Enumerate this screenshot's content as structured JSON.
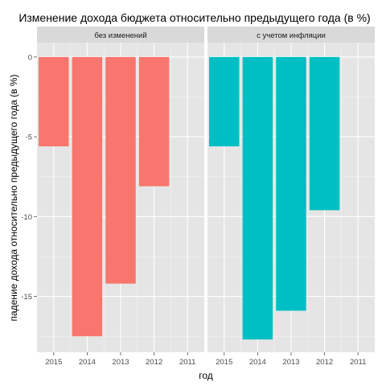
{
  "chart_data": {
    "type": "bar",
    "title": "Изменение дохода бюджета относительно предыдущего года (в %)",
    "xlabel": "год",
    "ylabel": "падение дохода относительно предыдущего года (в %)",
    "categories": [
      "2015",
      "2014",
      "2013",
      "2012",
      "2011"
    ],
    "y_ticks": [
      0,
      -5,
      -10,
      -15
    ],
    "y_tick_labels": [
      "0",
      "-5",
      "-10",
      "-15"
    ],
    "ylim": [
      -18.5,
      0.9
    ],
    "grid": true,
    "legend": "none",
    "panels": [
      {
        "label": "без изменений",
        "color": "#F8766D",
        "values": [
          -5.6,
          -17.5,
          -14.2,
          -8.1,
          0
        ]
      },
      {
        "label": "с учетом инфляции",
        "color": "#00BFC4",
        "values": [
          -5.6,
          -17.7,
          -15.9,
          -9.6,
          0
        ]
      }
    ]
  }
}
